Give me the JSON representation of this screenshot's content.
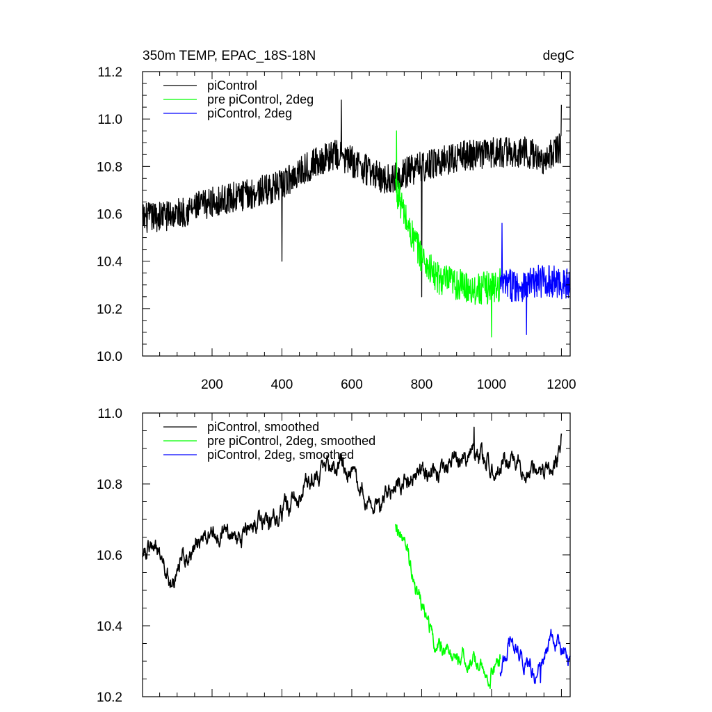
{
  "chart_data": [
    {
      "type": "line",
      "title": "350m TEMP, EPAC_18S-18N",
      "units": "degC",
      "xlim": [
        1,
        1225
      ],
      "ylim": [
        10.0,
        11.2
      ],
      "xticks": [
        200,
        400,
        600,
        800,
        1000,
        1200
      ],
      "yticks": [
        10.0,
        10.2,
        10.4,
        10.6,
        10.8,
        11.0,
        11.2
      ],
      "ytick_labels": [
        "10.0",
        "10.2",
        "10.4",
        "10.6",
        "10.8",
        "11.0",
        "11.2"
      ],
      "legend": "top-left",
      "series": [
        {
          "name": "piControl",
          "color": "#000000",
          "x_range": [
            1,
            1200
          ],
          "anchors": [
            [
              1,
              10.58
            ],
            [
              100,
              10.6
            ],
            [
              200,
              10.65
            ],
            [
              300,
              10.68
            ],
            [
              400,
              10.72
            ],
            [
              450,
              10.78
            ],
            [
              500,
              10.82
            ],
            [
              550,
              10.85
            ],
            [
              600,
              10.82
            ],
            [
              650,
              10.78
            ],
            [
              700,
              10.74
            ],
            [
              730,
              10.76
            ],
            [
              800,
              10.8
            ],
            [
              900,
              10.84
            ],
            [
              1000,
              10.86
            ],
            [
              1100,
              10.86
            ],
            [
              1150,
              10.83
            ],
            [
              1200,
              10.88
            ]
          ],
          "noise": 0.065,
          "spikes": [
            [
              570,
              11.08
            ],
            [
              400,
              10.4
            ],
            [
              800,
              10.25
            ],
            [
              1200,
              11.06
            ]
          ]
        },
        {
          "name": "pre piControl, 2deg",
          "color": "#00ff00",
          "x_range": [
            725,
            1025
          ],
          "anchors": [
            [
              725,
              10.72
            ],
            [
              760,
              10.55
            ],
            [
              800,
              10.42
            ],
            [
              840,
              10.33
            ],
            [
              900,
              10.3
            ],
            [
              960,
              10.28
            ],
            [
              1025,
              10.3
            ]
          ],
          "noise": 0.07,
          "spikes": [
            [
              728,
              10.95
            ],
            [
              1000,
              10.08
            ]
          ]
        },
        {
          "name": "piControl, 2deg",
          "color": "#0000ff",
          "x_range": [
            1025,
            1225
          ],
          "anchors": [
            [
              1025,
              10.3
            ],
            [
              1100,
              10.3
            ],
            [
              1150,
              10.32
            ],
            [
              1225,
              10.3
            ]
          ],
          "noise": 0.07,
          "spikes": [
            [
              1030,
              10.56
            ],
            [
              1100,
              10.09
            ]
          ]
        }
      ]
    },
    {
      "type": "line",
      "title": "",
      "xlim": [
        1,
        1225
      ],
      "ylim": [
        10.2,
        11.0
      ],
      "xticks": [
        200,
        400,
        600,
        800,
        1000,
        1200
      ],
      "yticks": [
        10.2,
        10.4,
        10.6,
        10.8,
        11.0
      ],
      "ytick_labels": [
        "10.2",
        "10.4",
        "10.6",
        "10.8",
        "11.0"
      ],
      "legend": "top-left",
      "series": [
        {
          "name": "piControl, smoothed",
          "color": "#000000",
          "x_range": [
            1,
            1200
          ],
          "anchors": [
            [
              1,
              10.61
            ],
            [
              50,
              10.61
            ],
            [
              80,
              10.52
            ],
            [
              120,
              10.6
            ],
            [
              200,
              10.66
            ],
            [
              300,
              10.66
            ],
            [
              400,
              10.72
            ],
            [
              470,
              10.8
            ],
            [
              520,
              10.85
            ],
            [
              570,
              10.86
            ],
            [
              620,
              10.8
            ],
            [
              680,
              10.74
            ],
            [
              730,
              10.8
            ],
            [
              800,
              10.82
            ],
            [
              850,
              10.84
            ],
            [
              900,
              10.88
            ],
            [
              950,
              10.88
            ],
            [
              1000,
              10.86
            ],
            [
              1100,
              10.85
            ],
            [
              1150,
              10.83
            ],
            [
              1180,
              10.84
            ],
            [
              1200,
              10.93
            ]
          ],
          "noise": 0.02,
          "spikes": [
            [
              950,
              10.96
            ]
          ]
        },
        {
          "name": "pre piControl, 2deg, smoothed",
          "color": "#00ff00",
          "x_range": [
            725,
            1025
          ],
          "anchors": [
            [
              725,
              10.7
            ],
            [
              760,
              10.6
            ],
            [
              800,
              10.46
            ],
            [
              830,
              10.36
            ],
            [
              870,
              10.33
            ],
            [
              950,
              10.3
            ],
            [
              990,
              10.26
            ],
            [
              1025,
              10.3
            ]
          ],
          "noise": 0.018,
          "spikes": []
        },
        {
          "name": "piControl, 2deg, smoothed",
          "color": "#0000ff",
          "x_range": [
            1025,
            1225
          ],
          "anchors": [
            [
              1025,
              10.28
            ],
            [
              1060,
              10.36
            ],
            [
              1100,
              10.28
            ],
            [
              1130,
              10.26
            ],
            [
              1170,
              10.36
            ],
            [
              1200,
              10.33
            ],
            [
              1225,
              10.31
            ]
          ],
          "noise": 0.018,
          "spikes": [
            [
              1140,
              10.24
            ]
          ]
        }
      ]
    }
  ]
}
